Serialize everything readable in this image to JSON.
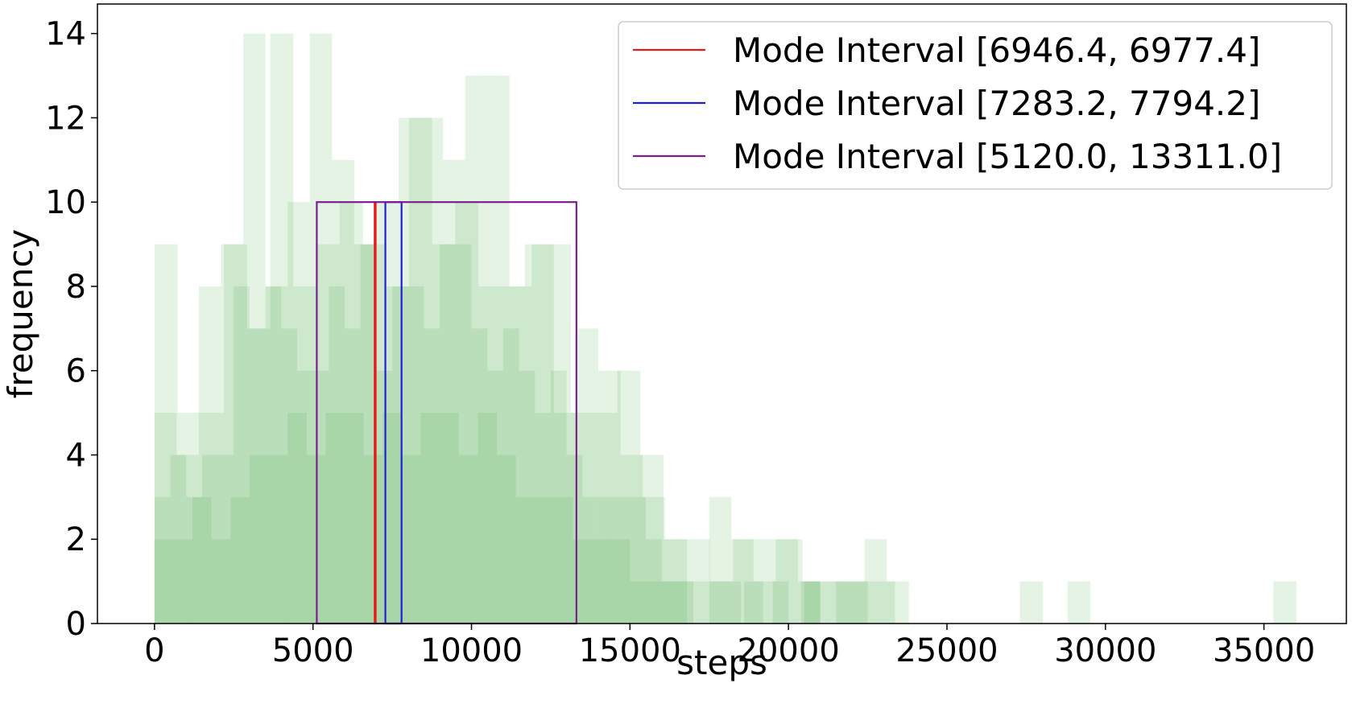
{
  "chart_data": {
    "type": "bar",
    "subtype": "overlaid-histograms",
    "title": "",
    "xlabel": "steps",
    "ylabel": "frequency",
    "xlim": [
      -1800,
      37600
    ],
    "ylim": [
      0,
      14.7
    ],
    "xticks": [
      0,
      5000,
      10000,
      15000,
      20000,
      25000,
      30000,
      35000
    ],
    "yticks": [
      0,
      2,
      4,
      6,
      8,
      10,
      12,
      14
    ],
    "grid": false,
    "legend_position": "top-right",
    "bar_color": "#2ca02c",
    "bar_opacity": 0.12,
    "histograms": [
      {
        "bin_width": 730,
        "bins": [
          {
            "x": 0,
            "count": 9
          },
          {
            "x": 730,
            "count": 5
          },
          {
            "x": 1460,
            "count": 5
          },
          {
            "x": 2190,
            "count": 9
          },
          {
            "x": 2920,
            "count": 7
          },
          {
            "x": 3650,
            "count": 14
          },
          {
            "x": 4380,
            "count": 8
          },
          {
            "x": 5110,
            "count": 9
          },
          {
            "x": 5840,
            "count": 10
          },
          {
            "x": 6570,
            "count": 9
          },
          {
            "x": 7300,
            "count": 8
          },
          {
            "x": 8030,
            "count": 12
          },
          {
            "x": 8760,
            "count": 9
          },
          {
            "x": 9490,
            "count": 10
          },
          {
            "x": 10220,
            "count": 8
          },
          {
            "x": 10950,
            "count": 8
          },
          {
            "x": 11680,
            "count": 9
          },
          {
            "x": 12410,
            "count": 9
          },
          {
            "x": 13140,
            "count": 5
          },
          {
            "x": 13870,
            "count": 5
          },
          {
            "x": 14600,
            "count": 6
          },
          {
            "x": 15330,
            "count": 4
          },
          {
            "x": 16060,
            "count": 2
          },
          {
            "x": 16790,
            "count": 2
          },
          {
            "x": 17520,
            "count": 1
          },
          {
            "x": 18250,
            "count": 2
          },
          {
            "x": 18980,
            "count": 2
          },
          {
            "x": 19710,
            "count": 2
          },
          {
            "x": 20440,
            "count": 1
          },
          {
            "x": 21170,
            "count": 1
          },
          {
            "x": 21900,
            "count": 1
          },
          {
            "x": 22630,
            "count": 1
          },
          {
            "x": 27300,
            "count": 1
          },
          {
            "x": 28800,
            "count": 1
          },
          {
            "x": 35300,
            "count": 1
          }
        ]
      },
      {
        "bin_width": 700,
        "bins": [
          {
            "x": 0,
            "count": 5
          },
          {
            "x": 700,
            "count": 4
          },
          {
            "x": 1400,
            "count": 8
          },
          {
            "x": 2100,
            "count": 9
          },
          {
            "x": 2800,
            "count": 14
          },
          {
            "x": 3500,
            "count": 8
          },
          {
            "x": 4200,
            "count": 10
          },
          {
            "x": 4900,
            "count": 14
          },
          {
            "x": 5600,
            "count": 11
          },
          {
            "x": 6300,
            "count": 9
          },
          {
            "x": 7000,
            "count": 10
          },
          {
            "x": 7700,
            "count": 12
          },
          {
            "x": 8400,
            "count": 12
          },
          {
            "x": 9100,
            "count": 11
          },
          {
            "x": 9800,
            "count": 13
          },
          {
            "x": 10500,
            "count": 13
          },
          {
            "x": 11200,
            "count": 8
          },
          {
            "x": 11900,
            "count": 9
          },
          {
            "x": 12600,
            "count": 5
          },
          {
            "x": 13300,
            "count": 7
          },
          {
            "x": 14000,
            "count": 6
          },
          {
            "x": 14700,
            "count": 4
          },
          {
            "x": 15400,
            "count": 3
          },
          {
            "x": 16100,
            "count": 2
          },
          {
            "x": 16800,
            "count": 1
          },
          {
            "x": 17500,
            "count": 3
          },
          {
            "x": 18200,
            "count": 2
          },
          {
            "x": 18900,
            "count": 1
          },
          {
            "x": 19600,
            "count": 2
          },
          {
            "x": 20300,
            "count": 1
          },
          {
            "x": 21000,
            "count": 1
          },
          {
            "x": 21700,
            "count": 1
          },
          {
            "x": 22400,
            "count": 2
          },
          {
            "x": 23100,
            "count": 1
          }
        ]
      },
      {
        "bin_width": 500,
        "bins": [
          {
            "x": 0,
            "count": 3
          },
          {
            "x": 500,
            "count": 4
          },
          {
            "x": 1000,
            "count": 3
          },
          {
            "x": 1500,
            "count": 4
          },
          {
            "x": 2000,
            "count": 4
          },
          {
            "x": 2500,
            "count": 8
          },
          {
            "x": 3000,
            "count": 7
          },
          {
            "x": 3500,
            "count": 8
          },
          {
            "x": 4000,
            "count": 7
          },
          {
            "x": 4500,
            "count": 6
          },
          {
            "x": 5000,
            "count": 6
          },
          {
            "x": 5500,
            "count": 8
          },
          {
            "x": 6000,
            "count": 7
          },
          {
            "x": 6500,
            "count": 9
          },
          {
            "x": 7000,
            "count": 6
          },
          {
            "x": 7500,
            "count": 8
          },
          {
            "x": 8000,
            "count": 8
          },
          {
            "x": 8500,
            "count": 7
          },
          {
            "x": 9000,
            "count": 9
          },
          {
            "x": 9500,
            "count": 9
          },
          {
            "x": 10000,
            "count": 7
          },
          {
            "x": 10500,
            "count": 6
          },
          {
            "x": 11000,
            "count": 7
          },
          {
            "x": 11500,
            "count": 6
          },
          {
            "x": 12000,
            "count": 5
          },
          {
            "x": 12500,
            "count": 6
          },
          {
            "x": 13000,
            "count": 4
          },
          {
            "x": 13500,
            "count": 3
          },
          {
            "x": 14000,
            "count": 3
          },
          {
            "x": 14500,
            "count": 3
          },
          {
            "x": 15000,
            "count": 3
          },
          {
            "x": 15500,
            "count": 2
          },
          {
            "x": 16000,
            "count": 1
          },
          {
            "x": 16500,
            "count": 1
          },
          {
            "x": 17500,
            "count": 1
          },
          {
            "x": 18000,
            "count": 1
          },
          {
            "x": 19500,
            "count": 1
          },
          {
            "x": 20500,
            "count": 1
          },
          {
            "x": 21500,
            "count": 1
          },
          {
            "x": 22000,
            "count": 1
          }
        ]
      },
      {
        "bin_width": 600,
        "bins": [
          {
            "x": 0,
            "count": 2
          },
          {
            "x": 600,
            "count": 2
          },
          {
            "x": 1200,
            "count": 3
          },
          {
            "x": 1800,
            "count": 2
          },
          {
            "x": 2400,
            "count": 3
          },
          {
            "x": 3000,
            "count": 4
          },
          {
            "x": 3600,
            "count": 4
          },
          {
            "x": 4200,
            "count": 5
          },
          {
            "x": 4800,
            "count": 4
          },
          {
            "x": 5400,
            "count": 5
          },
          {
            "x": 6000,
            "count": 5
          },
          {
            "x": 6600,
            "count": 4
          },
          {
            "x": 7200,
            "count": 5
          },
          {
            "x": 7800,
            "count": 4
          },
          {
            "x": 8400,
            "count": 5
          },
          {
            "x": 9000,
            "count": 5
          },
          {
            "x": 9600,
            "count": 4
          },
          {
            "x": 10200,
            "count": 5
          },
          {
            "x": 10800,
            "count": 4
          },
          {
            "x": 11400,
            "count": 3
          },
          {
            "x": 12000,
            "count": 3
          },
          {
            "x": 12600,
            "count": 3
          },
          {
            "x": 13200,
            "count": 2
          },
          {
            "x": 13800,
            "count": 2
          },
          {
            "x": 14400,
            "count": 2
          },
          {
            "x": 15000,
            "count": 1
          },
          {
            "x": 15600,
            "count": 1
          },
          {
            "x": 16200,
            "count": 1
          },
          {
            "x": 18600,
            "count": 1
          },
          {
            "x": 20400,
            "count": 1
          }
        ]
      }
    ],
    "mode_intervals": [
      {
        "name": "Mode Interval [6946.4, 6977.4]",
        "x0": 6946.4,
        "x1": 6977.4,
        "height": 10,
        "color": "#e41a1c"
      },
      {
        "name": "Mode Interval [7283.2, 7794.2]",
        "x0": 7283.2,
        "x1": 7794.2,
        "height": 10,
        "color": "#1f1fd6"
      },
      {
        "name": "Mode Interval [5120.0, 13311.0]",
        "x0": 5120.0,
        "x1": 13311.0,
        "height": 10,
        "color": "#7a1f8c"
      }
    ]
  }
}
